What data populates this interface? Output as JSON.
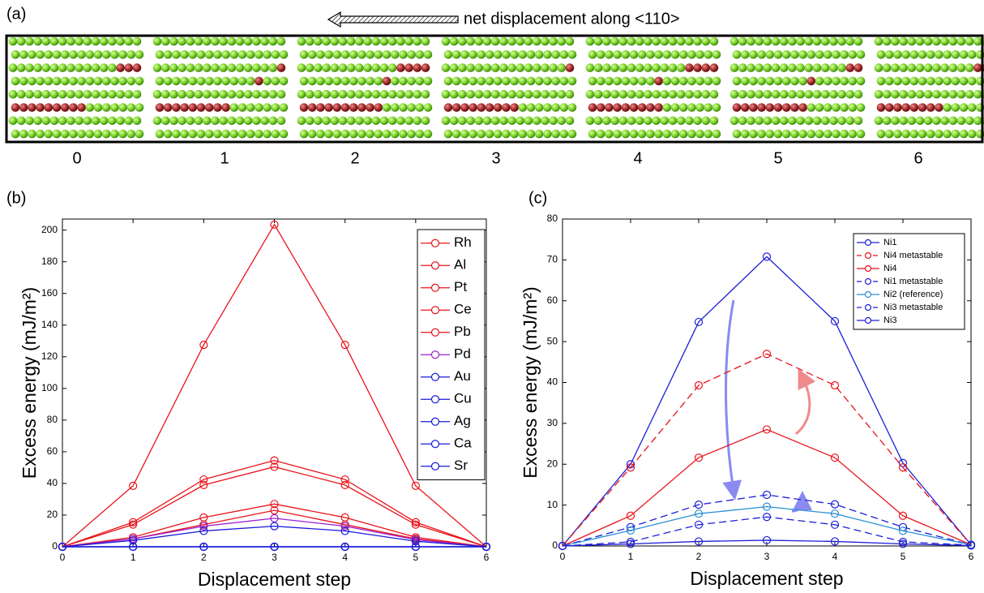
{
  "panel_a": {
    "label": "(a)",
    "caption": "net displacement along <110>",
    "frame_labels": [
      "0",
      "1",
      "2",
      "3",
      "4",
      "5",
      "6"
    ]
  },
  "chart_data": [
    {
      "type": "line",
      "panel_label": "(b)",
      "xlabel": "Displacement step",
      "ylabel": "Excess energy (mJ/m²)",
      "x": [
        0,
        1,
        2,
        3,
        4,
        5,
        6
      ],
      "xlim": [
        0,
        6
      ],
      "xticks": [
        0,
        1,
        2,
        3,
        4,
        5,
        6
      ],
      "ylim": [
        0,
        207
      ],
      "yticks": [
        0,
        20,
        40,
        60,
        80,
        100,
        120,
        140,
        160,
        180,
        200
      ],
      "legend": "upper right",
      "marker": "open-circle",
      "series": [
        {
          "name": "Rh",
          "color": "#e8141a",
          "dashed": false,
          "values": [
            0,
            38.5,
            127.5,
            203.5,
            127.5,
            38.5,
            0
          ]
        },
        {
          "name": "Al",
          "color": "#e8141a",
          "dashed": false,
          "values": [
            0,
            15.5,
            42.5,
            54.5,
            42.5,
            15.5,
            0
          ]
        },
        {
          "name": "Pt",
          "color": "#e8141a",
          "dashed": false,
          "values": [
            0,
            14,
            39,
            50.5,
            39,
            14,
            0
          ]
        },
        {
          "name": "Ce",
          "color": "#e8141a",
          "dashed": false,
          "values": [
            0,
            6,
            18.5,
            27,
            18.5,
            6,
            0
          ]
        },
        {
          "name": "Pb",
          "color": "#e8141a",
          "dashed": false,
          "values": [
            0,
            5,
            14,
            23,
            14,
            5,
            0
          ]
        },
        {
          "name": "Pd",
          "color": "#9a1fd0",
          "dashed": false,
          "values": [
            0,
            5,
            13,
            18,
            13,
            4.5,
            0
          ]
        },
        {
          "name": "Au",
          "color": "#1a1adb",
          "dashed": false,
          "values": [
            0,
            4,
            10,
            13,
            10,
            3.5,
            0
          ]
        },
        {
          "name": "Cu",
          "color": "#1a1adb",
          "dashed": false,
          "values": [
            0,
            0,
            0,
            0,
            0,
            0,
            0
          ]
        },
        {
          "name": "Ag",
          "color": "#1a1adb",
          "dashed": false,
          "values": [
            0,
            0,
            0,
            0,
            0,
            0,
            0
          ]
        },
        {
          "name": "Ca",
          "color": "#1a1adb",
          "dashed": false,
          "values": [
            0,
            0,
            0,
            0,
            0,
            0,
            0
          ]
        },
        {
          "name": "Sr",
          "color": "#1a1adb",
          "dashed": false,
          "values": [
            0,
            0,
            0,
            0,
            0,
            0,
            0
          ]
        }
      ]
    },
    {
      "type": "line",
      "panel_label": "(c)",
      "xlabel": "Displacement step",
      "ylabel": "Excess energy (mJ/m²)",
      "x": [
        0,
        1,
        2,
        3,
        4,
        5,
        6
      ],
      "xlim": [
        0,
        6
      ],
      "xticks": [
        0,
        1,
        2,
        3,
        4,
        5,
        6
      ],
      "ylim": [
        0,
        80
      ],
      "yticks": [
        0,
        10,
        20,
        30,
        40,
        50,
        60,
        70,
        80
      ],
      "legend": "upper right",
      "marker": "open-circle",
      "series": [
        {
          "name": "Ni1",
          "color": "#1f1fd6",
          "dashed": false,
          "values": [
            0,
            20,
            54.8,
            70.8,
            55,
            20.3,
            0.3
          ]
        },
        {
          "name": "Ni4 metastable",
          "color": "#e8141a",
          "dashed": true,
          "values": [
            0,
            19.2,
            39.3,
            47,
            39.3,
            19.2,
            0.3
          ]
        },
        {
          "name": "Ni4",
          "color": "#e8141a",
          "dashed": false,
          "values": [
            0,
            7.4,
            21.6,
            28.5,
            21.6,
            7.4,
            0.3
          ]
        },
        {
          "name": "Ni1 metastable",
          "color": "#1f1fd6",
          "dashed": true,
          "values": [
            0,
            4.6,
            10.1,
            12.5,
            10.2,
            4.6,
            0.3
          ]
        },
        {
          "name": "Ni2 (reference)",
          "color": "#2a8fd6",
          "dashed": false,
          "values": [
            0,
            3.8,
            7.9,
            9.6,
            7.9,
            3.7,
            0.3
          ]
        },
        {
          "name": "Ni3 metastable",
          "color": "#1f1fd6",
          "dashed": true,
          "values": [
            0,
            1,
            5.2,
            7.1,
            5.2,
            1,
            0.2
          ]
        },
        {
          "name": "Ni3",
          "color": "#1f1fd6",
          "dashed": false,
          "values": [
            0,
            0.5,
            1.1,
            1.4,
            1.1,
            0.5,
            0.1
          ]
        }
      ]
    }
  ]
}
